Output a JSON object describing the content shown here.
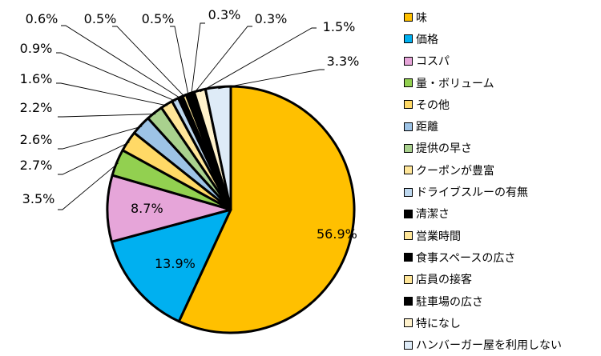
{
  "chart_data": {
    "type": "pie",
    "title": "",
    "series": [
      {
        "values": [
          56.9,
          13.9,
          8.7,
          3.5,
          2.7,
          2.6,
          2.2,
          1.6,
          0.9,
          0.6,
          0.5,
          0.5,
          0.3,
          0.3,
          1.5,
          3.3
        ]
      }
    ],
    "categories": [
      "味",
      "価格",
      "コスパ",
      "量・ボリューム",
      "その他",
      "距離",
      "提供の早さ",
      "クーポンが豊富",
      "ドライブスルーの有無",
      "清潔さ",
      "営業時間",
      "食事スペースの広さ",
      "店員の接客",
      "駐車場の広さ",
      "特になし",
      "ハンバーガー屋を利用しない"
    ],
    "data_labels": [
      "56.9%",
      "13.9%",
      "8.7%",
      "3.5%",
      "2.7%",
      "2.6%",
      "2.2%",
      "1.6%",
      "0.9%",
      "0.6%",
      "0.5%",
      "0.5%",
      "0.3%",
      "0.3%",
      "1.5%",
      "3.3%"
    ],
    "colors": [
      "#FFC000",
      "#00B0F0",
      "#E6A5D9",
      "#92D050",
      "#FFD966",
      "#9DC3E6",
      "#A9D18E",
      "#FFE699",
      "#BDD7EE",
      "#000000",
      "#FFE699",
      "#000000",
      "#FFE699",
      "#000000",
      "#FFF2CC",
      "#DEEBF7"
    ],
    "start_angle": "12 o'clock",
    "direction": "clockwise",
    "legend_position": "right"
  }
}
